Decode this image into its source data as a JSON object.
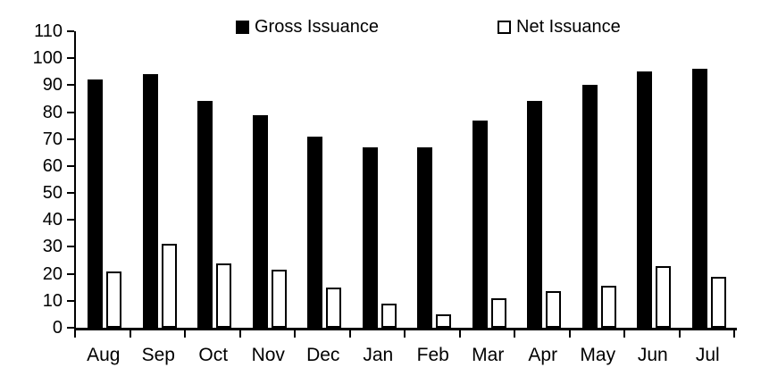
{
  "chart_data": {
    "type": "bar",
    "title": "",
    "categories": [
      "Aug",
      "Sep",
      "Oct",
      "Nov",
      "Dec",
      "Jan",
      "Feb",
      "Mar",
      "Apr",
      "May",
      "Jun",
      "Jul"
    ],
    "series": [
      {
        "name": "Gross Issuance",
        "values": [
          92,
          94,
          84,
          79,
          71,
          67,
          67,
          77,
          84,
          90,
          95,
          96
        ],
        "style": "filled",
        "color": "#000000"
      },
      {
        "name": "Net Issuance",
        "values": [
          21,
          31,
          24,
          21.5,
          15,
          9,
          5,
          11,
          13.5,
          15.5,
          23,
          19
        ],
        "style": "outlined",
        "fill": "#ffffff",
        "border": "#000000"
      }
    ],
    "xlabel": "",
    "ylabel": "",
    "ylim": [
      0,
      110
    ],
    "ytick_step": 10,
    "y_tick_labels": [
      "0",
      "10",
      "20",
      "30",
      "40",
      "50",
      "60",
      "70",
      "80",
      "90",
      "100",
      "110"
    ],
    "legend_position": "top",
    "grid": false,
    "background": "#ffffff"
  },
  "legend": {
    "items": [
      {
        "label": "Gross Issuance",
        "swatch": "black-filled-square"
      },
      {
        "label": "Net Issuance",
        "swatch": "white-outlined-square"
      }
    ]
  }
}
